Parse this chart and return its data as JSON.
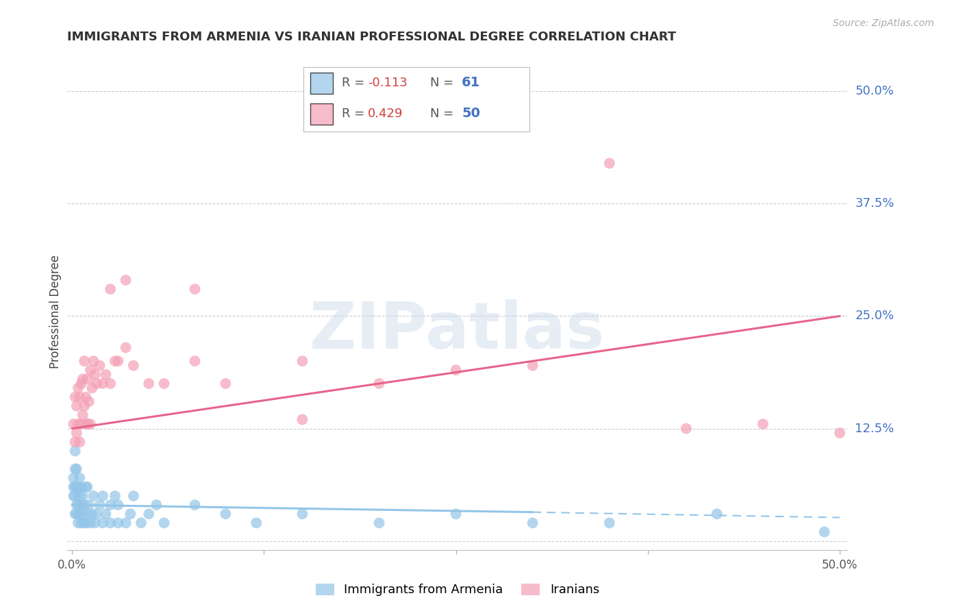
{
  "title": "IMMIGRANTS FROM ARMENIA VS IRANIAN PROFESSIONAL DEGREE CORRELATION CHART",
  "source": "Source: ZipAtlas.com",
  "ylabel": "Professional Degree",
  "color_armenia": "#93c5e8",
  "color_iran": "#f4a0b5",
  "background_color": "#ffffff",
  "watermark_text": "ZIPatlas",
  "ytick_values": [
    0.0,
    0.125,
    0.25,
    0.375,
    0.5
  ],
  "ytick_labels": [
    "",
    "12.5%",
    "25.0%",
    "37.5%",
    "50.0%"
  ],
  "xlim": [
    0.0,
    0.5
  ],
  "ylim": [
    0.0,
    0.52
  ],
  "r_armenia": "-0.113",
  "n_armenia": "61",
  "r_iran": "0.429",
  "n_iran": "50",
  "arm_line_start_x": 0.0,
  "arm_line_start_y": 0.04,
  "arm_line_end_solid_x": 0.3,
  "arm_line_end_solid_y": 0.032,
  "arm_line_end_dash_x": 0.5,
  "arm_line_end_dash_y": 0.026,
  "iran_line_start_x": 0.0,
  "iran_line_start_y": 0.125,
  "iran_line_end_x": 0.5,
  "iran_line_end_y": 0.25,
  "armenia_x": [
    0.001,
    0.001,
    0.001,
    0.002,
    0.002,
    0.002,
    0.002,
    0.003,
    0.003,
    0.003,
    0.003,
    0.004,
    0.004,
    0.004,
    0.005,
    0.005,
    0.005,
    0.006,
    0.006,
    0.006,
    0.007,
    0.007,
    0.008,
    0.008,
    0.009,
    0.009,
    0.01,
    0.01,
    0.011,
    0.012,
    0.013,
    0.014,
    0.015,
    0.016,
    0.018,
    0.02,
    0.02,
    0.022,
    0.025,
    0.025,
    0.028,
    0.03,
    0.03,
    0.035,
    0.038,
    0.04,
    0.045,
    0.05,
    0.055,
    0.06,
    0.08,
    0.1,
    0.12,
    0.15,
    0.2,
    0.25,
    0.3,
    0.35,
    0.42,
    0.49,
    0.002
  ],
  "armenia_y": [
    0.05,
    0.06,
    0.07,
    0.03,
    0.05,
    0.06,
    0.08,
    0.03,
    0.04,
    0.06,
    0.08,
    0.02,
    0.04,
    0.06,
    0.03,
    0.05,
    0.07,
    0.02,
    0.04,
    0.06,
    0.03,
    0.05,
    0.02,
    0.04,
    0.02,
    0.06,
    0.03,
    0.06,
    0.04,
    0.02,
    0.03,
    0.05,
    0.02,
    0.03,
    0.04,
    0.02,
    0.05,
    0.03,
    0.02,
    0.04,
    0.05,
    0.02,
    0.04,
    0.02,
    0.03,
    0.05,
    0.02,
    0.03,
    0.04,
    0.02,
    0.04,
    0.03,
    0.02,
    0.03,
    0.02,
    0.03,
    0.02,
    0.02,
    0.03,
    0.01,
    0.1
  ],
  "iran_x": [
    0.001,
    0.002,
    0.002,
    0.003,
    0.003,
    0.004,
    0.004,
    0.005,
    0.005,
    0.006,
    0.006,
    0.007,
    0.007,
    0.008,
    0.008,
    0.009,
    0.01,
    0.01,
    0.011,
    0.012,
    0.013,
    0.014,
    0.015,
    0.016,
    0.018,
    0.02,
    0.022,
    0.025,
    0.028,
    0.03,
    0.035,
    0.04,
    0.05,
    0.06,
    0.08,
    0.1,
    0.15,
    0.2,
    0.25,
    0.3,
    0.35,
    0.4,
    0.45,
    0.5,
    0.01,
    0.012,
    0.025,
    0.035,
    0.08,
    0.15
  ],
  "iran_y": [
    0.13,
    0.11,
    0.16,
    0.12,
    0.15,
    0.13,
    0.17,
    0.11,
    0.16,
    0.13,
    0.175,
    0.14,
    0.18,
    0.15,
    0.2,
    0.16,
    0.13,
    0.18,
    0.155,
    0.19,
    0.17,
    0.2,
    0.185,
    0.175,
    0.195,
    0.175,
    0.185,
    0.175,
    0.2,
    0.2,
    0.215,
    0.195,
    0.175,
    0.175,
    0.2,
    0.175,
    0.2,
    0.175,
    0.19,
    0.195,
    0.42,
    0.125,
    0.13,
    0.12,
    0.13,
    0.13,
    0.28,
    0.29,
    0.28,
    0.135
  ]
}
